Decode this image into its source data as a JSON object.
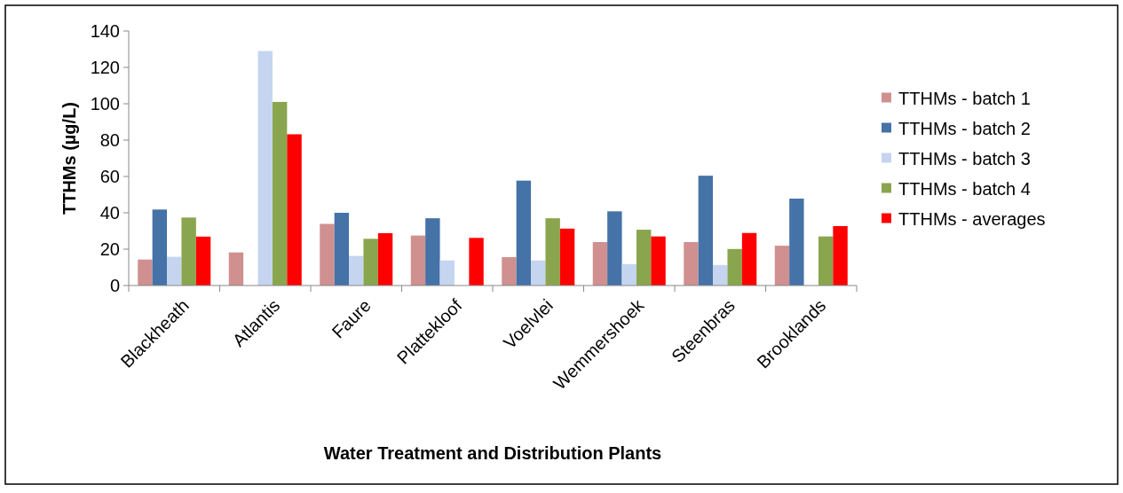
{
  "chart_data": {
    "type": "bar",
    "xlabel": "Water Treatment and Distribution Plants",
    "ylabel": "TTHMs (µg/L)",
    "categories": [
      "Blackheath",
      "Atlantis",
      "Faure",
      "Plattekloof",
      "Voelvlei",
      "Wemmershoek",
      "Steenbras",
      "Brooklands"
    ],
    "series": [
      {
        "name": "TTHMs - batch 1",
        "color": "#d09090",
        "values": [
          14.3,
          18.2,
          33.9,
          27.5,
          15.6,
          23.9,
          23.9,
          21.9
        ]
      },
      {
        "name": "TTHMs - batch 2",
        "color": "#4572a7",
        "values": [
          41.8,
          null,
          40,
          37,
          57.7,
          40.8,
          60.4,
          47.8
        ]
      },
      {
        "name": "TTHMs - batch 3",
        "color": "#c5d5f0",
        "values": [
          15.8,
          129,
          16.3,
          13.8,
          13.8,
          11.8,
          11.3,
          null
        ]
      },
      {
        "name": "TTHMs - batch 4",
        "color": "#89a54e",
        "values": [
          37.4,
          101,
          25.7,
          null,
          37,
          30.7,
          20.1,
          27
        ]
      },
      {
        "name": "TTHMs - averages",
        "color": "#ff0000",
        "values": [
          26.9,
          83.2,
          28.8,
          26.2,
          31.3,
          27,
          28.9,
          32.7
        ]
      }
    ],
    "ylim": [
      0,
      140
    ],
    "yticks": [
      0,
      20,
      40,
      60,
      80,
      100,
      120,
      140
    ],
    "grid": false,
    "legend": "right"
  }
}
